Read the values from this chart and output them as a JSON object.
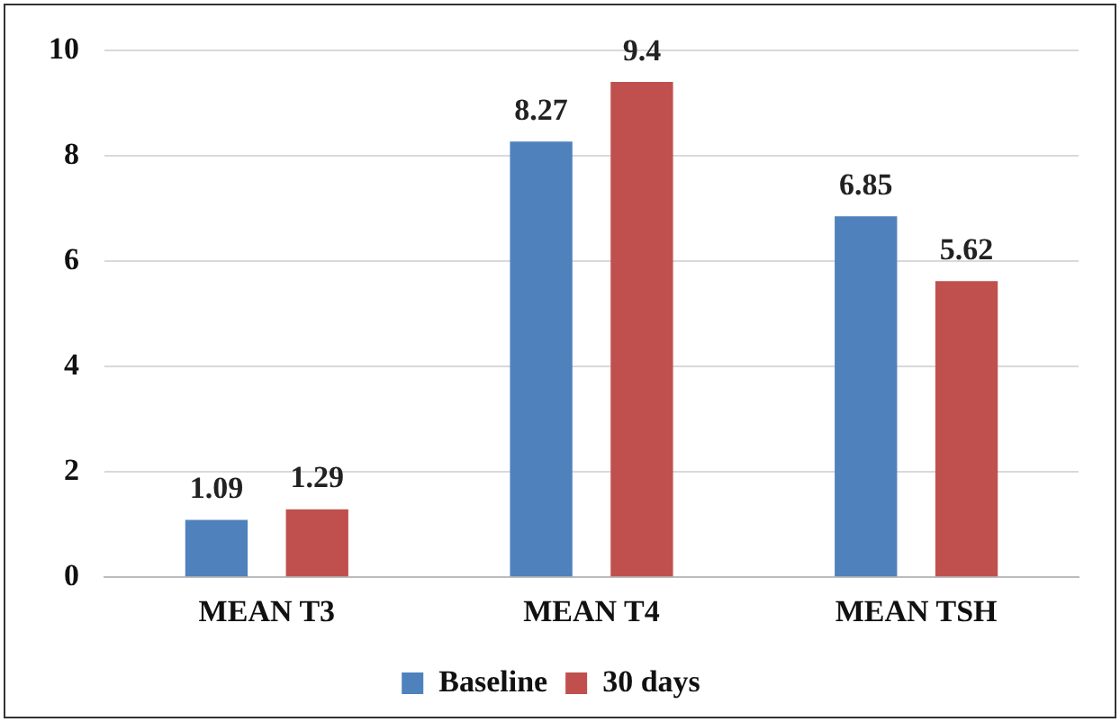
{
  "chart_data": {
    "type": "bar",
    "categories": [
      "MEAN T3",
      "MEAN T4",
      "MEAN TSH"
    ],
    "series": [
      {
        "name": "Baseline",
        "color": "#4f81bd",
        "values": [
          1.09,
          8.27,
          6.85
        ]
      },
      {
        "name": "30 days",
        "color": "#c0504d",
        "values": [
          1.29,
          9.4,
          5.62
        ]
      }
    ],
    "ylim": [
      0,
      10
    ],
    "yticks": [
      0,
      2,
      4,
      6,
      8,
      10
    ],
    "grid": "y",
    "legend": "bottom",
    "data_labels": true
  }
}
